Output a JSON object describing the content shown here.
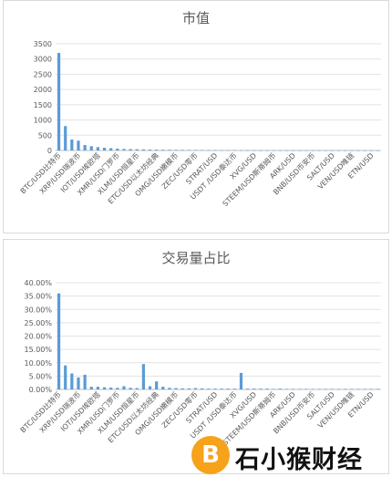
{
  "chart_data": [
    {
      "type": "bar",
      "title": "市值",
      "ylim": [
        0,
        3500
      ],
      "yticks": [
        "0",
        "500",
        "1000",
        "1500",
        "2000",
        "2500",
        "3000",
        "3500"
      ],
      "tick_labels": [
        "BTC/USD比特币",
        "XRP/USD瑞波币",
        "IOT/USD埃欧塔",
        "XMR/USD门罗币",
        "XLM/USD恒星币",
        "ETC/USD以太坊经典",
        "OMG/USD嫩模币",
        "ZEC/USD零币",
        "STRAT/USD",
        "USDT /USD泰达币",
        "XVG/USD",
        "STEEM/USD斯蒂姆币",
        "ARK/USD",
        "BNB/USD币安币",
        "SALT/USD",
        "VEN/USD唯链",
        "ETN/USD"
      ],
      "values": [
        3200,
        800,
        360,
        320,
        180,
        140,
        110,
        90,
        75,
        60,
        50,
        45,
        40,
        35,
        30,
        28,
        26,
        24,
        22,
        20,
        18,
        17,
        16,
        15,
        14,
        13,
        12,
        12,
        11,
        11,
        10,
        10,
        9,
        9,
        8,
        8,
        8,
        7,
        7,
        7,
        6,
        6,
        6,
        5,
        5,
        5,
        5,
        4,
        4,
        4
      ],
      "color": "#5b9bd5",
      "grid": true,
      "legend": "none"
    },
    {
      "type": "bar",
      "title": "交易量占比",
      "ylim": [
        0,
        40
      ],
      "yticks": [
        "0.00%",
        "5.00%",
        "10.00%",
        "15.00%",
        "20.00%",
        "25.00%",
        "30.00%",
        "35.00%",
        "40.00%"
      ],
      "tick_labels": [
        "BTC/USD比特币",
        "XRP/USD瑞波币",
        "IOT/USD埃欧塔",
        "XMR/USD门罗币",
        "XLM/USD恒星币",
        "ETC/USD以太坊经典",
        "OMG/USD嫩模币",
        "ZEC/USD零币",
        "STRAT/USD",
        "USDT /USD泰达币",
        "XVG/USD",
        "STEEM/USD斯蒂姆币",
        "ARK/USD",
        "BNB/USD币安币",
        "SALT/USD",
        "VEN/USD唯链",
        "ETN/USD"
      ],
      "values": [
        36.0,
        9.0,
        6.0,
        4.5,
        5.5,
        1.0,
        1.0,
        0.8,
        0.7,
        0.6,
        1.2,
        0.6,
        0.5,
        9.5,
        1.2,
        3.0,
        1.0,
        0.6,
        0.5,
        0.4,
        0.4,
        0.5,
        0.4,
        0.3,
        0.3,
        0.3,
        0.3,
        0.3,
        6.2,
        0.3,
        0.3,
        0.3,
        0.3,
        0.2,
        0.3,
        0.2,
        0.2,
        0.2,
        0.2,
        0.2,
        0.2,
        0.2,
        0.2,
        0.2,
        0.2,
        0.2,
        0.2,
        0.2,
        0.2,
        0.2
      ],
      "color": "#5b9bd5",
      "grid": true,
      "legend": "none"
    }
  ],
  "watermark": {
    "logo_letter": "B",
    "text": "石小猴财经"
  }
}
